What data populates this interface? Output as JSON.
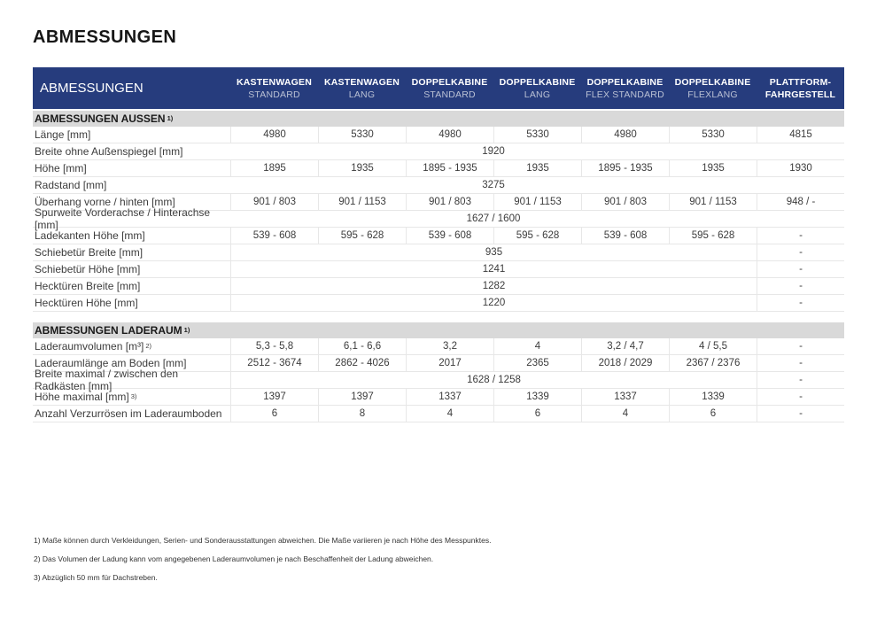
{
  "page_title": "ABMESSUNGEN",
  "colors": {
    "header_blue": "#263c7d",
    "section_gray": "#d9d9d9",
    "header_subline": "#b9c0d4",
    "row_border": "#e7e7e7",
    "text_dark": "#3c3c3c"
  },
  "table": {
    "header": {
      "title": "ABMESSUNGEN",
      "columns": [
        {
          "line1": "KASTENWAGEN",
          "line2": "STANDARD",
          "line2_bold": false
        },
        {
          "line1": "KASTENWAGEN",
          "line2": "LANG",
          "line2_bold": false
        },
        {
          "line1": "DOPPELKABINE",
          "line2": "STANDARD",
          "line2_bold": false
        },
        {
          "line1": "DOPPELKABINE",
          "line2": "LANG",
          "line2_bold": false
        },
        {
          "line1": "DOPPELKABINE",
          "line2": "FLEX STANDARD",
          "line2_bold": false
        },
        {
          "line1": "DOPPELKABINE",
          "line2": "FLEXLANG",
          "line2_bold": false
        },
        {
          "line1": "PLATTFORM-",
          "line2": "FAHRGESTELL",
          "line2_bold": true
        }
      ]
    },
    "sections": [
      {
        "title": "ABMESSUNGEN AUSSEN",
        "title_sup": "1)",
        "rows": [
          {
            "label": "Länge [mm]",
            "type": "values",
            "values": [
              "4980",
              "5330",
              "4980",
              "5330",
              "4980",
              "5330",
              "4815"
            ]
          },
          {
            "label": "Breite ohne Außenspiegel [mm]",
            "type": "span",
            "span_value": "1920",
            "last": ""
          },
          {
            "label": "Höhe [mm]",
            "type": "values",
            "values": [
              "1895",
              "1935",
              "1895 - 1935",
              "1935",
              "1895 - 1935",
              "1935",
              "1930"
            ]
          },
          {
            "label": "Radstand [mm]",
            "type": "span",
            "span_value": "3275",
            "last": ""
          },
          {
            "label": "Überhang vorne / hinten [mm]",
            "type": "values",
            "values": [
              "901 / 803",
              "901 / 1153",
              "901 / 803",
              "901 / 1153",
              "901 / 803",
              "901 / 1153",
              "948 / -"
            ]
          },
          {
            "label": "Spurweite Vorderachse / Hinterachse [mm]",
            "type": "span",
            "span_value": "1627 / 1600",
            "last": ""
          },
          {
            "label": "Ladekanten Höhe [mm]",
            "type": "values",
            "values": [
              "539 - 608",
              "595 - 628",
              "539 - 608",
              "595 - 628",
              "539 - 608",
              "595 - 628",
              "-"
            ]
          },
          {
            "label": "Schiebetür Breite [mm]",
            "type": "span",
            "span_value": "935",
            "last": "-"
          },
          {
            "label": "Schiebetür Höhe [mm]",
            "type": "span",
            "span_value": "1241",
            "last": "-"
          },
          {
            "label": "Hecktüren Breite [mm]",
            "type": "span",
            "span_value": "1282",
            "last": "-"
          },
          {
            "label": "Hecktüren Höhe [mm]",
            "type": "span",
            "span_value": "1220",
            "last": "-"
          }
        ]
      },
      {
        "title": "ABMESSUNGEN LADERAUM",
        "title_sup": "1)",
        "rows": [
          {
            "label": "Laderaumvolumen [m³]",
            "label_sup": "2)",
            "type": "values",
            "values": [
              "5,3 - 5,8",
              "6,1 - 6,6",
              "3,2",
              "4",
              "3,2 / 4,7",
              "4 / 5,5",
              "-"
            ]
          },
          {
            "label": "Laderaumlänge am Boden [mm]",
            "type": "values",
            "values": [
              "2512 - 3674",
              "2862 - 4026",
              "2017",
              "2365",
              "2018 / 2029",
              "2367 / 2376",
              "-"
            ]
          },
          {
            "label": "Breite maximal / zwischen den Radkästen [mm]",
            "type": "span",
            "span_value": "1628 / 1258",
            "last": "-"
          },
          {
            "label": "Höhe maximal [mm]",
            "label_sup": "3)",
            "type": "values",
            "values": [
              "1397",
              "1397",
              "1337",
              "1339",
              "1337",
              "1339",
              "-"
            ]
          },
          {
            "label": "Anzahl Verzurrösen im Laderaumboden",
            "type": "values",
            "values": [
              "6",
              "8",
              "4",
              "6",
              "4",
              "6",
              "-"
            ]
          }
        ]
      }
    ]
  },
  "footnotes": [
    "1) Maße können durch Verkleidungen, Serien- und Sonderausstattungen abweichen. Die Maße variieren je nach Höhe des Messpunktes.",
    "2) Das Volumen der Ladung kann vom angegebenen Laderaumvolumen je nach Beschaffenheit der Ladung abweichen.",
    "3) Abzüglich 50 mm für Dachstreben."
  ]
}
